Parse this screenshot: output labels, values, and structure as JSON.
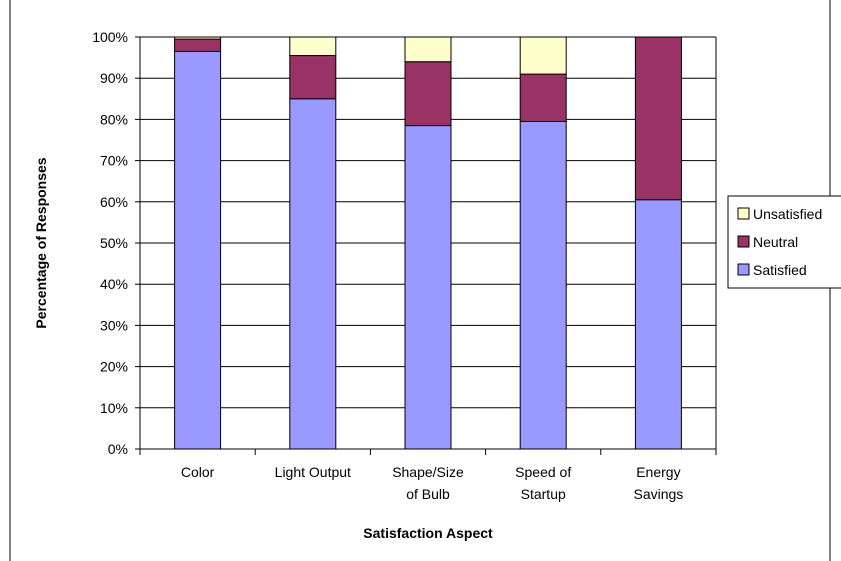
{
  "chart_data": {
    "type": "bar",
    "stacked": true,
    "percent_stacked": true,
    "categories": [
      [
        "Color"
      ],
      [
        "Light Output"
      ],
      [
        "Shape/Size",
        "of Bulb"
      ],
      [
        "Speed of",
        "Startup"
      ],
      [
        "Energy",
        "Savings"
      ]
    ],
    "series": [
      {
        "name": "Satisfied",
        "values": [
          96.5,
          85,
          78.5,
          79.5,
          60.5
        ],
        "color": "#9999ff"
      },
      {
        "name": "Neutral",
        "values": [
          3,
          10.5,
          15.5,
          11.5,
          39.5
        ],
        "color": "#993366"
      },
      {
        "name": "Unsatisfied",
        "values": [
          0.5,
          4.5,
          6,
          9,
          0
        ],
        "color": "#ffffcc"
      }
    ],
    "xlabel": "Satisfaction Aspect",
    "ylabel": "Percentage of Responses",
    "ylim": [
      0,
      100
    ],
    "yticks": [
      "0%",
      "10%",
      "20%",
      "30%",
      "40%",
      "50%",
      "60%",
      "70%",
      "80%",
      "90%",
      "100%"
    ],
    "grid": true,
    "legend_position": "right",
    "legend_order": [
      "Unsatisfied",
      "Neutral",
      "Satisfied"
    ]
  }
}
